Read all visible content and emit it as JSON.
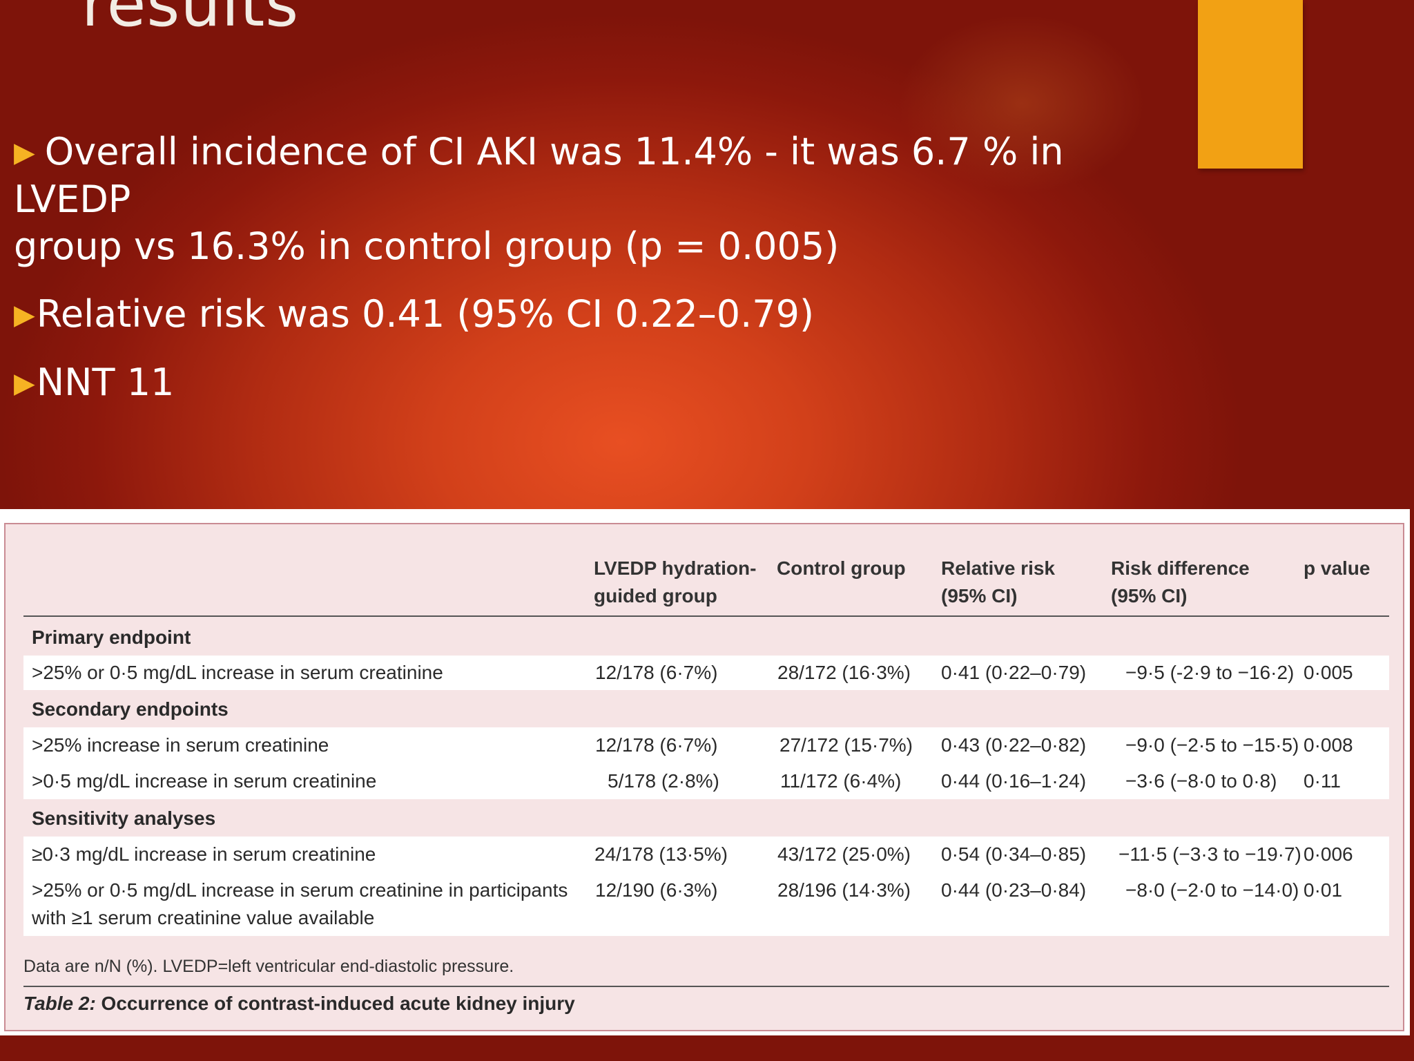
{
  "slide": {
    "title": "results",
    "bullets": [
      {
        "line1": "Overall incidence of CI AKI was 11.4% - it was 6.7 % in LVEDP",
        "line2": "group vs 16.3% in control group (p = 0.005)"
      },
      {
        "text": "Relative risk was 0.41 (95% CI 0.22–0.79)"
      },
      {
        "text": "NNT 11"
      }
    ],
    "bullet_glyph": "▶"
  },
  "table": {
    "headers": [
      {
        "line1": "LVEDP hydration-",
        "line2": "guided group"
      },
      {
        "line1": "Control group",
        "line2": ""
      },
      {
        "line1": "Relative risk",
        "line2": "(95% CI)"
      },
      {
        "line1": "Risk difference",
        "line2": "(95% CI)"
      },
      {
        "line1": "p value",
        "line2": ""
      }
    ],
    "sections": [
      {
        "title": "Primary endpoint"
      },
      {
        "title": "Secondary endpoints"
      },
      {
        "title": "Sensitivity analyses"
      }
    ],
    "rows": [
      {
        "label": ">25% or 0·5 mg/dL increase in serum creatinine",
        "label2": "",
        "lvedp": "12/178 (6·7%)",
        "control": "28/172 (16·3%)",
        "rr": "0·41 (0·22–0·79)",
        "rd": "−9·5 (-2·9 to −16·2)",
        "p": "0·005"
      },
      {
        "label": ">25% increase in serum creatinine",
        "label2": "",
        "lvedp": "12/178 (6·7%)",
        "control": "27/172 (15·7%)",
        "rr": "0·43 (0·22–0·82)",
        "rd": "−9·0 (−2·5 to −15·5)",
        "p": "0·008"
      },
      {
        "label": ">0·5 mg/dL increase in serum creatinine",
        "label2": "",
        "lvedp": "5/178 (2·8%)",
        "control": "11/172 (6·4%)",
        "rr": "0·44 (0·16–1·24)",
        "rd": "−3·6 (−8·0 to 0·8)",
        "p": "0·11"
      },
      {
        "label": "≥0·3 mg/dL increase in serum creatinine",
        "label2": "",
        "lvedp": "24/178 (13·5%)",
        "control": "43/172 (25·0%)",
        "rr": "0·54 (0·34–0·85)",
        "rd": "−11·5 (−3·3 to −19·7)",
        "p": "0·006"
      },
      {
        "label": ">25% or 0·5 mg/dL increase in serum creatinine in participants",
        "label2": "with ≥1 serum creatinine value available",
        "lvedp": "12/190 (6·3%)",
        "control": "28/196 (14·3%)",
        "rr": "0·44 (0·23–0·84)",
        "rd": "−8·0 (−2·0 to −14·0)",
        "p": "0·01"
      }
    ],
    "footnote": "Data are n/N (%). LVEDP=left ventricular end-diastolic pressure.",
    "caption_label": "Table 2:",
    "caption_text": " Occurrence of contrast-induced acute kidney injury"
  },
  "colors": {
    "accent_bar": "#f2a114",
    "bullet_arrow": "#f6b323",
    "table_bg": "#f6e4e5"
  }
}
